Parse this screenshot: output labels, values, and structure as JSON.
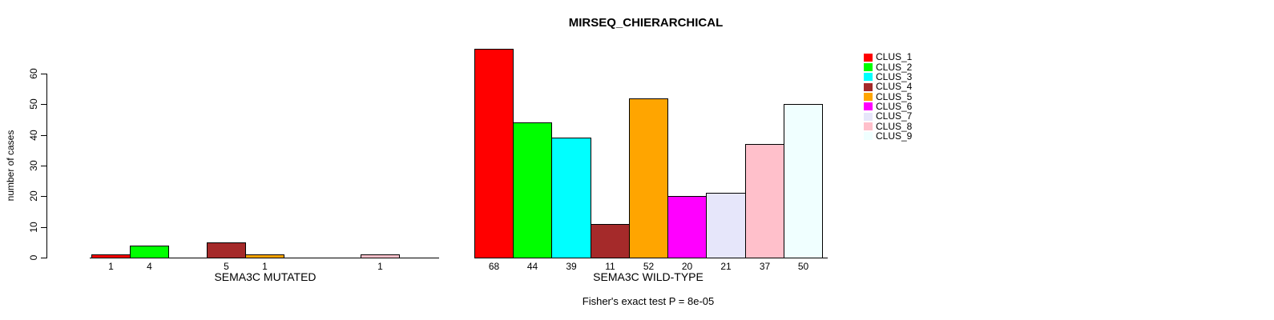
{
  "chart_data": {
    "type": "bar",
    "title": "MIRSEQ_CHIERARCHICAL",
    "ylabel": "number of cases",
    "ylim": [
      0,
      60
    ],
    "yticks": [
      0,
      10,
      20,
      30,
      40,
      50,
      60
    ],
    "grid": false,
    "categories": [
      "CLUS_1",
      "CLUS_2",
      "CLUS_3",
      "CLUS_4",
      "CLUS_5",
      "CLUS_6",
      "CLUS_7",
      "CLUS_8",
      "CLUS_9"
    ],
    "palette": [
      "#FF0000",
      "#00FF00",
      "#00FFFF",
      "#A52A2A",
      "#FFA500",
      "#FF00FF",
      "#E6E6FA",
      "#FFC0CB",
      "#F0FFFF"
    ],
    "bar_border_color": "#000000",
    "groups": [
      {
        "label": "SEMA3C MUTATED",
        "values": [
          1,
          4,
          0,
          5,
          1,
          0,
          0,
          1,
          0
        ]
      },
      {
        "label": "SEMA3C WILD-TYPE",
        "values": [
          68,
          44,
          39,
          11,
          52,
          20,
          21,
          37,
          50
        ]
      }
    ],
    "bar_value_labels": "shown under each nonzero bar",
    "annotation": "Fisher's exact test P = 8e-05",
    "legend": {
      "position": "right",
      "entries": [
        "CLUS_1",
        "CLUS_2",
        "CLUS_3",
        "CLUS_4",
        "CLUS_5",
        "CLUS_6",
        "CLUS_7",
        "CLUS_8",
        "CLUS_9"
      ]
    }
  }
}
